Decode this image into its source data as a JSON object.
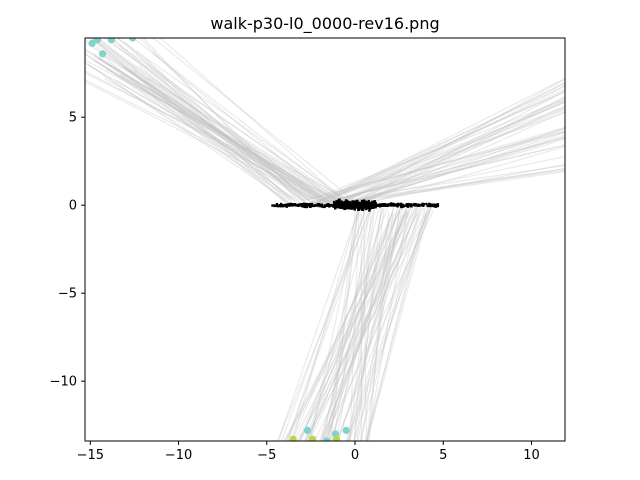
{
  "chart_data": {
    "type": "scatter",
    "title": "walk-p30-l0_0000-rev16.png",
    "xlabel": "",
    "ylabel": "",
    "xlim": [
      -15.3,
      11.9
    ],
    "ylim": [
      -13.4,
      9.5
    ],
    "grid": false,
    "legend": "none",
    "x_ticks": [
      {
        "value": -15,
        "label": "−15"
      },
      {
        "value": -10,
        "label": "−10"
      },
      {
        "value": -5,
        "label": "−5"
      },
      {
        "value": 0,
        "label": "0"
      },
      {
        "value": 5,
        "label": "5"
      },
      {
        "value": 10,
        "label": "10"
      }
    ],
    "y_ticks": [
      {
        "value": 5,
        "label": "5"
      },
      {
        "value": 0,
        "label": "0"
      },
      {
        "value": -5,
        "label": "−5"
      },
      {
        "value": -10,
        "label": "−10"
      }
    ],
    "colors": {
      "center_cluster": "#000000",
      "rays": "#c4c4c4",
      "endpoint_teal": "#7fd3c8",
      "endpoint_yellowgreen": "#b8d84a",
      "axes": "#000000"
    },
    "center_cluster": {
      "x_range": [
        -4.7,
        4.7
      ],
      "y_spread": 0.35,
      "dense_core_x": [
        -1.2,
        1.2
      ],
      "count": 700
    },
    "ray_groups": [
      {
        "name": "",
        "direction": "upper-left",
        "from_x": [
          -4.0,
          0.0
        ],
        "from_y": [
          0.0,
          0.4
        ],
        "to_x": [
          -16.5,
          -11.0
        ],
        "to_y": [
          7.0,
          10.5
        ],
        "count": 60
      },
      {
        "name": "",
        "direction": "upper-right",
        "from_x": [
          -3.0,
          0.5
        ],
        "from_y": [
          -0.2,
          0.4
        ],
        "to_x": [
          11.9,
          11.9
        ],
        "to_y": [
          1.8,
          7.3
        ],
        "count": 45
      },
      {
        "name": "",
        "direction": "down",
        "from_x": [
          0.0,
          4.5
        ],
        "from_y": [
          -0.5,
          0.2
        ],
        "to_x": [
          -4.5,
          0.8
        ],
        "to_y": [
          -13.4,
          -13.4
        ],
        "count": 70
      }
    ],
    "endpoints": [
      {
        "x": -14.9,
        "y": 9.2,
        "color": "teal"
      },
      {
        "x": -14.6,
        "y": 9.4,
        "color": "teal"
      },
      {
        "x": -14.3,
        "y": 8.6,
        "color": "teal"
      },
      {
        "x": -13.8,
        "y": 9.4,
        "color": "teal"
      },
      {
        "x": -12.6,
        "y": 9.5,
        "color": "teal"
      },
      {
        "x": -3.5,
        "y": -13.3,
        "color": "yellowgreen"
      },
      {
        "x": -2.7,
        "y": -12.8,
        "color": "teal"
      },
      {
        "x": -2.4,
        "y": -13.3,
        "color": "yellowgreen"
      },
      {
        "x": -1.6,
        "y": -13.4,
        "color": "teal"
      },
      {
        "x": -1.1,
        "y": -13.0,
        "color": "teal"
      },
      {
        "x": -1.05,
        "y": -13.3,
        "color": "yellowgreen"
      },
      {
        "x": -0.5,
        "y": -12.8,
        "color": "teal"
      }
    ]
  }
}
